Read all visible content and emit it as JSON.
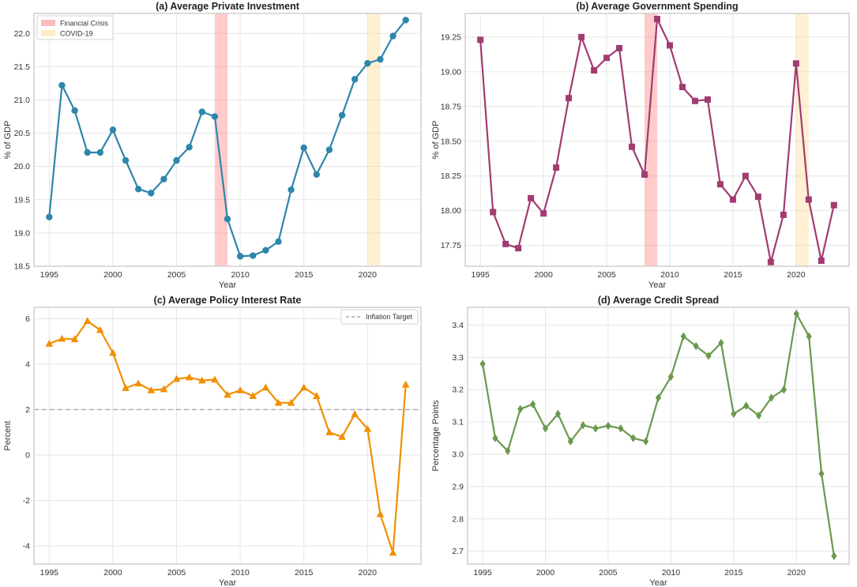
{
  "chart_data": [
    {
      "type": "line",
      "title": "(a) Average Private Investment",
      "xlabel": "Year",
      "ylabel": "% of GDP",
      "xlim": [
        1993.8,
        2024.2
      ],
      "ylim": [
        18.5,
        22.3
      ],
      "xticks": [
        1995,
        2000,
        2005,
        2010,
        2015,
        2020
      ],
      "yticks": [
        18.5,
        19.0,
        19.5,
        20.0,
        20.5,
        21.0,
        21.5,
        22.0
      ],
      "ytick_labels": [
        "18.5",
        "19.0",
        "19.5",
        "20.0",
        "20.5",
        "21.0",
        "21.5",
        "22.0"
      ],
      "grid": true,
      "legend": "top-left",
      "marker": "circle",
      "color": "#2E86AB",
      "shaded_regions": [
        {
          "label": "Financial Crisis",
          "x0": 2008,
          "x1": 2009,
          "color": "#FF6B6B"
        },
        {
          "label": "COVID-19",
          "x0": 2020,
          "x1": 2021,
          "color": "#FFD580"
        }
      ],
      "x": [
        1995,
        1996,
        1997,
        1998,
        1999,
        2000,
        2001,
        2002,
        2003,
        2004,
        2005,
        2006,
        2007,
        2008,
        2009,
        2010,
        2011,
        2012,
        2013,
        2014,
        2015,
        2016,
        2017,
        2018,
        2019,
        2020,
        2021,
        2022,
        2023
      ],
      "values": [
        19.24,
        21.22,
        20.84,
        20.21,
        20.21,
        20.55,
        20.09,
        19.66,
        19.6,
        19.81,
        20.09,
        20.29,
        20.82,
        20.75,
        19.21,
        18.65,
        18.66,
        18.74,
        18.87,
        19.65,
        20.28,
        19.88,
        20.25,
        20.77,
        21.31,
        21.55,
        21.61,
        21.96,
        22.2
      ]
    },
    {
      "type": "line",
      "title": "(b) Average Government Spending",
      "xlabel": "Year",
      "ylabel": "% of GDP",
      "xlim": [
        1993.8,
        2024.2
      ],
      "ylim": [
        17.6,
        19.42
      ],
      "xticks": [
        1995,
        2000,
        2005,
        2010,
        2015,
        2020
      ],
      "yticks": [
        17.75,
        18.0,
        18.25,
        18.5,
        18.75,
        19.0,
        19.25
      ],
      "ytick_labels": [
        "17.75",
        "18.00",
        "18.25",
        "18.50",
        "18.75",
        "19.00",
        "19.25"
      ],
      "grid": true,
      "marker": "square",
      "color": "#A23B72",
      "shaded_regions": [
        {
          "label": "",
          "x0": 2008,
          "x1": 2009,
          "color": "#FF6B6B"
        },
        {
          "label": "",
          "x0": 2020,
          "x1": 2021,
          "color": "#FFD580"
        }
      ],
      "x": [
        1995,
        1996,
        1997,
        1998,
        1999,
        2000,
        2001,
        2002,
        2003,
        2004,
        2005,
        2006,
        2007,
        2008,
        2009,
        2010,
        2011,
        2012,
        2013,
        2014,
        2015,
        2016,
        2017,
        2018,
        2019,
        2020,
        2021,
        2022,
        2023
      ],
      "values": [
        19.23,
        17.99,
        17.76,
        17.73,
        18.09,
        17.98,
        18.31,
        18.81,
        19.25,
        19.01,
        19.1,
        19.17,
        18.46,
        18.26,
        19.38,
        19.19,
        18.89,
        18.79,
        18.8,
        18.19,
        18.08,
        18.25,
        18.1,
        17.63,
        17.97,
        19.06,
        18.08,
        17.64,
        18.04
      ]
    },
    {
      "type": "line",
      "title": "(c) Average Policy Interest Rate",
      "xlabel": "Year",
      "ylabel": "Percent",
      "xlim": [
        1993.8,
        2024.2
      ],
      "ylim": [
        -4.8,
        6.5
      ],
      "xticks": [
        1995,
        2000,
        2005,
        2010,
        2015,
        2020
      ],
      "yticks": [
        -4,
        -2,
        0,
        2,
        4,
        6
      ],
      "ytick_labels": [
        "-4",
        "-2",
        "0",
        "2",
        "4",
        "6"
      ],
      "grid": true,
      "legend": "top-right",
      "marker": "triangle",
      "color": "#F18F01",
      "reference_line": {
        "label": "Inflation Target",
        "y": 2,
        "color": "#AAAAAA",
        "style": "dashed"
      },
      "x": [
        1995,
        1996,
        1997,
        1998,
        1999,
        2000,
        2001,
        2002,
        2003,
        2004,
        2005,
        2006,
        2007,
        2008,
        2009,
        2010,
        2011,
        2012,
        2013,
        2014,
        2015,
        2016,
        2017,
        2018,
        2019,
        2020,
        2021,
        2022,
        2023
      ],
      "values": [
        4.9,
        5.12,
        5.1,
        5.9,
        5.5,
        4.5,
        2.95,
        3.15,
        2.85,
        2.9,
        3.35,
        3.42,
        3.28,
        3.32,
        2.65,
        2.85,
        2.6,
        2.97,
        2.3,
        2.3,
        2.97,
        2.6,
        1.0,
        0.8,
        1.8,
        1.15,
        -2.6,
        -4.3,
        3.1
      ]
    },
    {
      "type": "line",
      "title": "(d) Average Credit Spread",
      "xlabel": "Year",
      "ylabel": "Percentage Points",
      "xlim": [
        1993.8,
        2024.2
      ],
      "ylim": [
        2.66,
        3.455
      ],
      "xticks": [
        1995,
        2000,
        2005,
        2010,
        2015,
        2020
      ],
      "yticks": [
        2.7,
        2.8,
        2.9,
        3.0,
        3.1,
        3.2,
        3.3,
        3.4
      ],
      "ytick_labels": [
        "2.7",
        "2.8",
        "2.9",
        "3.0",
        "3.1",
        "3.2",
        "3.3",
        "3.4"
      ],
      "grid": true,
      "marker": "diamond",
      "color": "#6A994E",
      "x": [
        1995,
        1996,
        1997,
        1998,
        1999,
        2000,
        2001,
        2002,
        2003,
        2004,
        2005,
        2006,
        2007,
        2008,
        2009,
        2010,
        2011,
        2012,
        2013,
        2014,
        2015,
        2016,
        2017,
        2018,
        2019,
        2020,
        2021,
        2022,
        2023
      ],
      "values": [
        3.28,
        3.05,
        3.01,
        3.14,
        3.155,
        3.08,
        3.125,
        3.04,
        3.09,
        3.08,
        3.088,
        3.08,
        3.05,
        3.04,
        3.175,
        3.24,
        3.365,
        3.335,
        3.305,
        3.345,
        3.125,
        3.15,
        3.12,
        3.175,
        3.2,
        3.435,
        3.365,
        2.94,
        2.685
      ]
    }
  ]
}
